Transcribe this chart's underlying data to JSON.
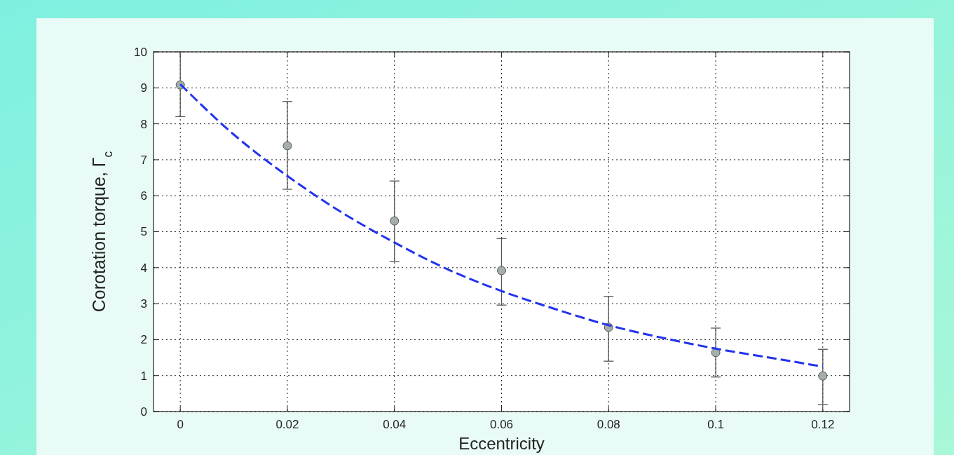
{
  "chart_data": {
    "type": "scatter",
    "xlabel": "Eccentricity",
    "ylabel": "Corotation torque, Γ$_{c}$",
    "xlim": [
      -0.005,
      0.125
    ],
    "xticks": [
      0,
      0.02,
      0.04,
      0.06,
      0.08,
      0.1,
      0.12
    ],
    "ylim": [
      0,
      10
    ],
    "yticks": [
      0,
      1,
      2,
      3,
      4,
      5,
      6,
      7,
      8,
      9,
      10
    ],
    "grid": true,
    "series": [
      {
        "color": "#a4aeab",
        "marker": "circle",
        "x": [
          0,
          0.02,
          0.04,
          0.06,
          0.08,
          0.1,
          0.12
        ],
        "values": [
          9.08,
          7.39,
          5.3,
          3.92,
          2.34,
          1.64,
          0.99
        ],
        "errors": [
          [
            8.2,
            10
          ],
          [
            6.18,
            8.62
          ],
          [
            4.17,
            6.41
          ],
          [
            2.96,
            4.81
          ],
          [
            1.4,
            3.2
          ],
          [
            0.96,
            2.32
          ],
          [
            0.19,
            1.73
          ]
        ]
      },
      {
        "type": "line",
        "color": "#2233ee",
        "line_style": "dashed",
        "marker": "none",
        "x": [
          0,
          0.01,
          0.02,
          0.03,
          0.04,
          0.05,
          0.06,
          0.07,
          0.08,
          0.09,
          0.1,
          0.11,
          0.12
        ],
        "values": [
          9.1,
          7.7,
          6.55,
          5.55,
          4.7,
          3.95,
          3.35,
          2.85,
          2.4,
          2.05,
          1.75,
          1.5,
          1.25
        ]
      }
    ]
  }
}
